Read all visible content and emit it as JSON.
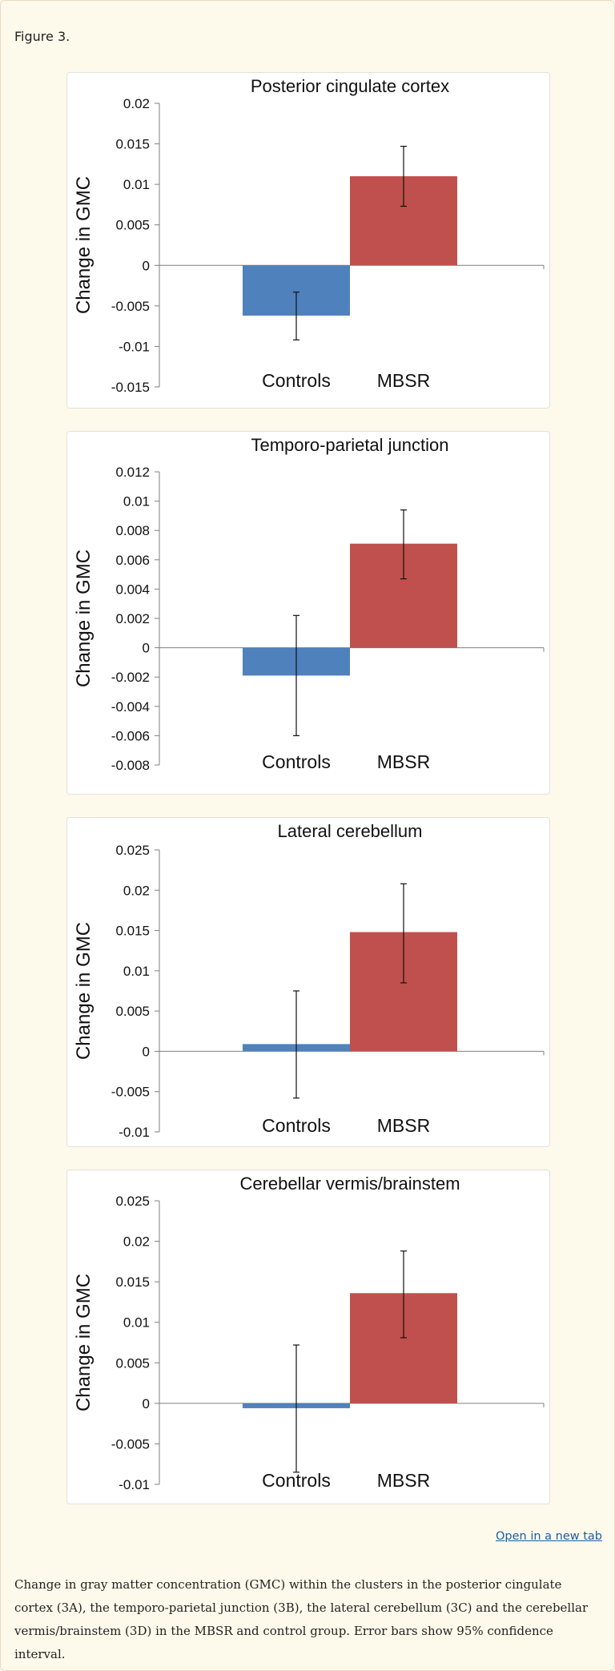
{
  "figure_label": "Figure 3.",
  "open_link": "Open in a new tab",
  "caption": "Change in gray matter concentration (GMC) within the clusters in the posterior cingulate cortex (3A), the temporo-parietal junction (3B), the lateral cerebellum (3C) and the cerebellar vermis/brainstem (3D) in the MBSR and control group. Error bars show 95% confidence interval.",
  "colors": {
    "controls": "#4f81bd",
    "mbsr": "#c0504d"
  },
  "chart_data": [
    {
      "type": "bar",
      "title": "Posterior cingulate cortex",
      "ylabel": "Change in GMC",
      "categories": [
        "Controls",
        "MBSR"
      ],
      "values": [
        -0.0062,
        0.011
      ],
      "error_low": [
        -0.0092,
        0.0073
      ],
      "error_high": [
        -0.0033,
        0.0147
      ],
      "ylim": [
        -0.015,
        0.02
      ],
      "ticks": [
        "0.02",
        "0.015",
        "0.01",
        "0.005",
        "0",
        "-0.005",
        "-0.01",
        "-0.015"
      ]
    },
    {
      "type": "bar",
      "title": "Temporo-parietal junction",
      "ylabel": "Change in GMC",
      "categories": [
        "Controls",
        "MBSR"
      ],
      "values": [
        -0.0019,
        0.0071
      ],
      "error_low": [
        -0.006,
        0.0047
      ],
      "error_high": [
        0.0022,
        0.0094
      ],
      "ylim": [
        -0.008,
        0.012
      ],
      "ticks": [
        "0.012",
        "0.01",
        "0.008",
        "0.006",
        "0.004",
        "0.002",
        "0",
        "-0.002",
        "-0.004",
        "-0.006",
        "-0.008"
      ]
    },
    {
      "type": "bar",
      "title": "Lateral cerebellum",
      "ylabel": "Change in GMC",
      "categories": [
        "Controls",
        "MBSR"
      ],
      "values": [
        0.0009,
        0.0148
      ],
      "error_low": [
        -0.0058,
        0.0085
      ],
      "error_high": [
        0.0075,
        0.0208
      ],
      "ylim": [
        -0.01,
        0.025
      ],
      "ticks": [
        "0.025",
        "0.02",
        "0.015",
        "0.01",
        "0.005",
        "0",
        "-0.005",
        "-0.01"
      ]
    },
    {
      "type": "bar",
      "title": "Cerebellar vermis/brainstem",
      "ylabel": "Change in GMC",
      "categories": [
        "Controls",
        "MBSR"
      ],
      "values": [
        -0.0006,
        0.0136
      ],
      "error_low": [
        -0.0085,
        0.0081
      ],
      "error_high": [
        0.0072,
        0.0188
      ],
      "ylim": [
        -0.01,
        0.025
      ],
      "ticks": [
        "0.025",
        "0.02",
        "0.015",
        "0.01",
        "0.005",
        "0",
        "-0.005",
        "-0.01"
      ]
    }
  ]
}
